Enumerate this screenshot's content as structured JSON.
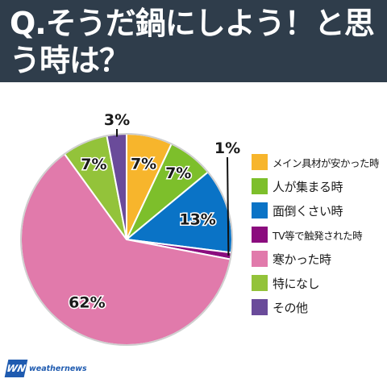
{
  "header": {
    "title": "Q.そうだ鍋にしよう！と思う時は？"
  },
  "chart_data": {
    "type": "pie",
    "title": "Q.そうだ鍋にしよう！と思う時は？",
    "start": "12 o'clock",
    "direction": "clockwise",
    "slices": [
      {
        "label": "メイン具材が安かった時",
        "value": 7,
        "display": "7%",
        "color": "#f7b52c"
      },
      {
        "label": "人が集まる時",
        "value": 7,
        "display": "7%",
        "color": "#7dbf2b"
      },
      {
        "label": "面倒くさい時",
        "value": 13,
        "display": "13%",
        "color": "#0a73c6"
      },
      {
        "label": "TV等で触発された時",
        "value": 1,
        "display": "1%",
        "color": "#8b0c7e"
      },
      {
        "label": "寒かった時",
        "value": 62,
        "display": "62%",
        "color": "#e17aab"
      },
      {
        "label": "特になし",
        "value": 7,
        "display": "7%",
        "color": "#93c33a"
      },
      {
        "label": "その他",
        "value": 3,
        "display": "3%",
        "color": "#6a4b9a"
      }
    ]
  },
  "logo": {
    "mark": "WN",
    "text": "weathernews"
  }
}
